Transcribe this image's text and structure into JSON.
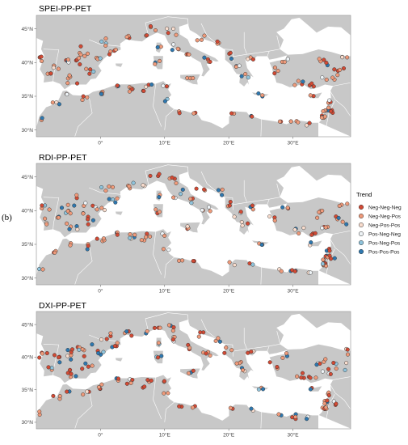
{
  "side_label": "(b)",
  "colors": {
    "land": "#c8c8c8",
    "sea": "#ffffff",
    "border": "#ffffff",
    "frame": "#777777"
  },
  "legend": {
    "title": "Trend",
    "items": [
      {
        "label": "Neg-Neg-Neg",
        "color": "#d24a34"
      },
      {
        "label": "Neg-Neg-Pos",
        "color": "#ef9a7a"
      },
      {
        "label": "Neg-Pos-Pos",
        "color": "#f8dccd"
      },
      {
        "label": "Pos-Neg-Neg",
        "color": "#eef3f6"
      },
      {
        "label": "Pos-Neg-Pos",
        "color": "#8fc3db"
      },
      {
        "label": "Pos-Pos-Pos",
        "color": "#2e78b0"
      }
    ]
  },
  "axes": {
    "lon_range": [
      -10,
      39
    ],
    "lat_range": [
      29,
      47
    ],
    "lat_ticks": [
      {
        "value": 30,
        "label": "30°N"
      },
      {
        "value": 35,
        "label": "35°N"
      },
      {
        "value": 40,
        "label": "40°N"
      },
      {
        "value": 45,
        "label": "45°N"
      }
    ],
    "lon_ticks": [
      {
        "value": 0,
        "label": "0°"
      },
      {
        "value": 10,
        "label": "10°E"
      },
      {
        "value": 20,
        "label": "20°E"
      },
      {
        "value": 30,
        "label": "30°E"
      }
    ]
  },
  "panels": [
    {
      "title": "SPEI-PP-PET",
      "seed": 11,
      "w": [
        0.3,
        0.5,
        0.07,
        0.03,
        0.03,
        0.07
      ]
    },
    {
      "title": "RDI-PP-PET",
      "seed": 23,
      "w": [
        0.25,
        0.4,
        0.05,
        0.04,
        0.08,
        0.18
      ]
    },
    {
      "title": "DXI-PP-PET",
      "seed": 37,
      "w": [
        0.33,
        0.42,
        0.05,
        0.03,
        0.05,
        0.12
      ]
    }
  ]
}
